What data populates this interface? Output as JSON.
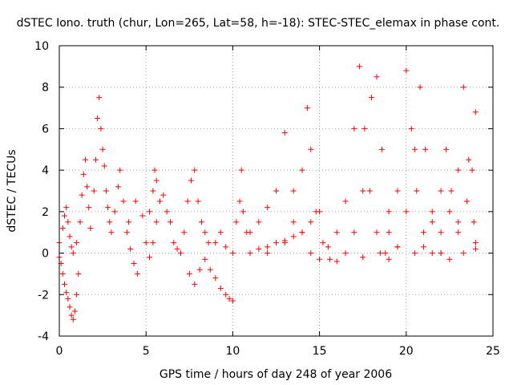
{
  "chart_data": {
    "type": "scatter",
    "title": "dSTEC Iono. truth (chur, Lon=265, Lat=58, h=-18): STEC-STEC_elemax in phase cont.",
    "xlabel": "GPS time / hours of day 248 of year 2006",
    "ylabel": "dSTEC  / TECUs",
    "xlim": [
      0,
      25
    ],
    "ylim": [
      -4,
      10
    ],
    "xticks": [
      0,
      5,
      10,
      15,
      20,
      25
    ],
    "yticks": [
      -4,
      -2,
      0,
      2,
      4,
      6,
      8,
      10
    ],
    "grid": true,
    "marker": "+",
    "color": "#ff0000",
    "series": [
      {
        "points": [
          [
            0.0,
            -0.2
          ],
          [
            0.1,
            -0.5
          ],
          [
            0.2,
            -1.0
          ],
          [
            0.3,
            -1.5
          ],
          [
            0.4,
            -1.9
          ],
          [
            0.5,
            -2.2
          ],
          [
            0.6,
            -2.6
          ],
          [
            0.7,
            -3.0
          ],
          [
            0.8,
            -3.2
          ],
          [
            0.9,
            -2.8
          ],
          [
            1.0,
            -2.0
          ],
          [
            1.1,
            -1.0
          ],
          [
            0.0,
            0.5
          ],
          [
            0.2,
            1.2
          ],
          [
            0.3,
            1.8
          ],
          [
            0.4,
            2.2
          ],
          [
            0.5,
            1.5
          ],
          [
            0.6,
            0.8
          ],
          [
            0.7,
            0.3
          ],
          [
            0.8,
            0.0
          ],
          [
            1.0,
            0.5
          ],
          [
            1.2,
            1.5
          ],
          [
            1.3,
            2.8
          ],
          [
            1.4,
            3.8
          ],
          [
            1.5,
            4.5
          ],
          [
            1.6,
            3.2
          ],
          [
            1.7,
            2.2
          ],
          [
            1.8,
            1.2
          ],
          [
            2.0,
            3.0
          ],
          [
            2.1,
            4.5
          ],
          [
            2.2,
            6.5
          ],
          [
            2.3,
            7.5
          ],
          [
            2.4,
            6.0
          ],
          [
            2.5,
            5.0
          ],
          [
            2.6,
            4.2
          ],
          [
            2.7,
            3.0
          ],
          [
            2.8,
            2.2
          ],
          [
            2.9,
            1.5
          ],
          [
            3.0,
            1.0
          ],
          [
            3.2,
            2.0
          ],
          [
            3.4,
            3.2
          ],
          [
            3.5,
            4.0
          ],
          [
            3.7,
            2.5
          ],
          [
            3.9,
            1.0
          ],
          [
            4.1,
            0.2
          ],
          [
            4.3,
            -0.5
          ],
          [
            4.5,
            -1.0
          ],
          [
            4.0,
            1.5
          ],
          [
            4.4,
            2.5
          ],
          [
            4.8,
            1.8
          ],
          [
            5.0,
            0.5
          ],
          [
            5.2,
            -0.2
          ],
          [
            5.4,
            0.5
          ],
          [
            5.6,
            1.5
          ],
          [
            5.2,
            2.0
          ],
          [
            5.4,
            3.0
          ],
          [
            5.5,
            4.0
          ],
          [
            5.6,
            3.5
          ],
          [
            5.8,
            2.5
          ],
          [
            6.0,
            2.8
          ],
          [
            6.2,
            2.0
          ],
          [
            6.4,
            1.5
          ],
          [
            6.6,
            0.5
          ],
          [
            6.8,
            0.2
          ],
          [
            7.0,
            0.0
          ],
          [
            7.2,
            1.0
          ],
          [
            7.4,
            2.5
          ],
          [
            7.6,
            3.5
          ],
          [
            7.8,
            4.0
          ],
          [
            8.0,
            2.5
          ],
          [
            8.2,
            1.5
          ],
          [
            8.4,
            1.0
          ],
          [
            8.6,
            0.5
          ],
          [
            7.5,
            -1.0
          ],
          [
            7.8,
            -1.5
          ],
          [
            8.1,
            -0.8
          ],
          [
            8.4,
            -0.3
          ],
          [
            8.7,
            -0.8
          ],
          [
            9.0,
            -1.2
          ],
          [
            9.3,
            -1.7
          ],
          [
            9.6,
            -2.0
          ],
          [
            9.8,
            -2.2
          ],
          [
            10.0,
            -2.3
          ],
          [
            9.0,
            0.5
          ],
          [
            9.3,
            1.0
          ],
          [
            9.6,
            0.3
          ],
          [
            10.0,
            0.0
          ],
          [
            10.2,
            1.5
          ],
          [
            10.4,
            2.5
          ],
          [
            10.5,
            4.0
          ],
          [
            10.6,
            2.0
          ],
          [
            10.8,
            1.0
          ],
          [
            11.0,
            0.0
          ],
          [
            11.5,
            0.2
          ],
          [
            12.0,
            0.3
          ],
          [
            12.5,
            0.5
          ],
          [
            13.0,
            0.6
          ],
          [
            13.5,
            0.8
          ],
          [
            14.0,
            1.0
          ],
          [
            14.5,
            1.5
          ],
          [
            15.0,
            2.0
          ],
          [
            11.0,
            1.0
          ],
          [
            11.5,
            1.5
          ],
          [
            12.0,
            2.2
          ],
          [
            12.5,
            3.0
          ],
          [
            13.0,
            5.8
          ],
          [
            13.5,
            3.0
          ],
          [
            14.0,
            1.0
          ],
          [
            14.5,
            0.0
          ],
          [
            15.0,
            -0.3
          ],
          [
            12.0,
            0.0
          ],
          [
            13.0,
            0.5
          ],
          [
            13.5,
            1.5
          ],
          [
            14.0,
            4.0
          ],
          [
            14.3,
            7.0
          ],
          [
            14.5,
            5.0
          ],
          [
            14.8,
            2.0
          ],
          [
            15.2,
            0.5
          ],
          [
            15.6,
            -0.3
          ],
          [
            15.5,
            0.3
          ],
          [
            16.0,
            1.0
          ],
          [
            16.5,
            2.5
          ],
          [
            17.0,
            6.0
          ],
          [
            17.3,
            9.0
          ],
          [
            17.6,
            6.0
          ],
          [
            17.9,
            3.0
          ],
          [
            18.3,
            1.0
          ],
          [
            18.8,
            0.0
          ],
          [
            16.0,
            -0.4
          ],
          [
            16.5,
            0.0
          ],
          [
            17.0,
            1.0
          ],
          [
            17.5,
            3.0
          ],
          [
            18.0,
            7.5
          ],
          [
            18.3,
            8.5
          ],
          [
            18.6,
            5.0
          ],
          [
            19.0,
            2.0
          ],
          [
            19.5,
            0.3
          ],
          [
            17.5,
            -0.2
          ],
          [
            18.5,
            0.0
          ],
          [
            19.0,
            1.0
          ],
          [
            19.5,
            3.0
          ],
          [
            20.0,
            8.8
          ],
          [
            20.3,
            6.0
          ],
          [
            20.6,
            3.0
          ],
          [
            21.0,
            1.0
          ],
          [
            21.5,
            0.0
          ],
          [
            19.0,
            -0.3
          ],
          [
            19.5,
            0.3
          ],
          [
            20.0,
            2.0
          ],
          [
            20.5,
            5.0
          ],
          [
            20.8,
            8.0
          ],
          [
            21.1,
            5.0
          ],
          [
            21.5,
            2.0
          ],
          [
            22.0,
            0.0
          ],
          [
            22.5,
            -0.3
          ],
          [
            20.5,
            0.0
          ],
          [
            21.5,
            1.5
          ],
          [
            22.0,
            3.0
          ],
          [
            22.3,
            5.0
          ],
          [
            22.6,
            3.0
          ],
          [
            23.0,
            1.0
          ],
          [
            23.3,
            0.0
          ],
          [
            21.0,
            0.3
          ],
          [
            22.0,
            1.0
          ],
          [
            22.5,
            2.0
          ],
          [
            23.0,
            4.0
          ],
          [
            23.3,
            8.0
          ],
          [
            23.6,
            4.5
          ],
          [
            23.9,
            1.5
          ],
          [
            24.0,
            0.5
          ],
          [
            22.0,
            0.0
          ],
          [
            23.0,
            1.5
          ],
          [
            23.5,
            2.5
          ],
          [
            24.0,
            6.8
          ],
          [
            23.8,
            4.0
          ],
          [
            24.0,
            0.2
          ]
        ]
      }
    ]
  }
}
